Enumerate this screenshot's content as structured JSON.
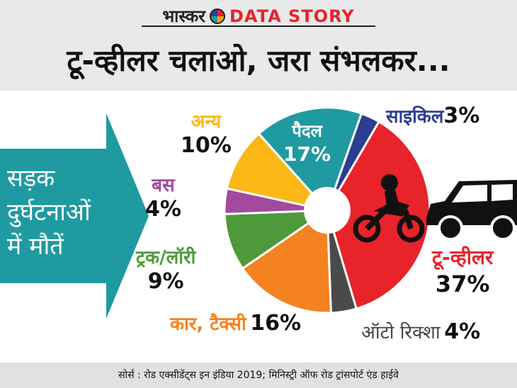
{
  "brand": {
    "name": "भास्कर",
    "section": "DATA STORY"
  },
  "title": "टू-व्हीलर चलाओ, जरा संभलकर...",
  "arrow_label": {
    "line1": "सड़क",
    "line2": "दुर्घटनाओं",
    "line3": "में मौतें"
  },
  "source": "सोर्स : रोड एक्सीडेंट्स इन इंडिया 2019; मिनिस्ट्री ऑफ रोड ट्रांसपोर्ट एंड हाईवे",
  "chart_data": {
    "type": "pie",
    "donut": true,
    "slices": [
      {
        "label": "साइकिल",
        "value": 3,
        "display": "3%",
        "color": "#2c3e8f"
      },
      {
        "label": "टू-व्हीलर",
        "value": 37,
        "display": "37%",
        "color": "#e8232a"
      },
      {
        "label": "ऑटो रिक्शा",
        "value": 4,
        "display": "4%",
        "color": "#4a4a4a"
      },
      {
        "label": "कार, टैक्सी",
        "value": 16,
        "display": "16%",
        "color": "#f58220"
      },
      {
        "label": "ट्रक/लॉरी",
        "value": 9,
        "display": "9%",
        "color": "#4e9a3a"
      },
      {
        "label": "बस",
        "value": 4,
        "display": "4%",
        "color": "#a24a9e"
      },
      {
        "label": "अन्य",
        "value": 10,
        "display": "10%",
        "color": "#fbb816"
      },
      {
        "label": "पैदल",
        "value": 17,
        "display": "17%",
        "color": "#1f9aa0"
      }
    ]
  }
}
